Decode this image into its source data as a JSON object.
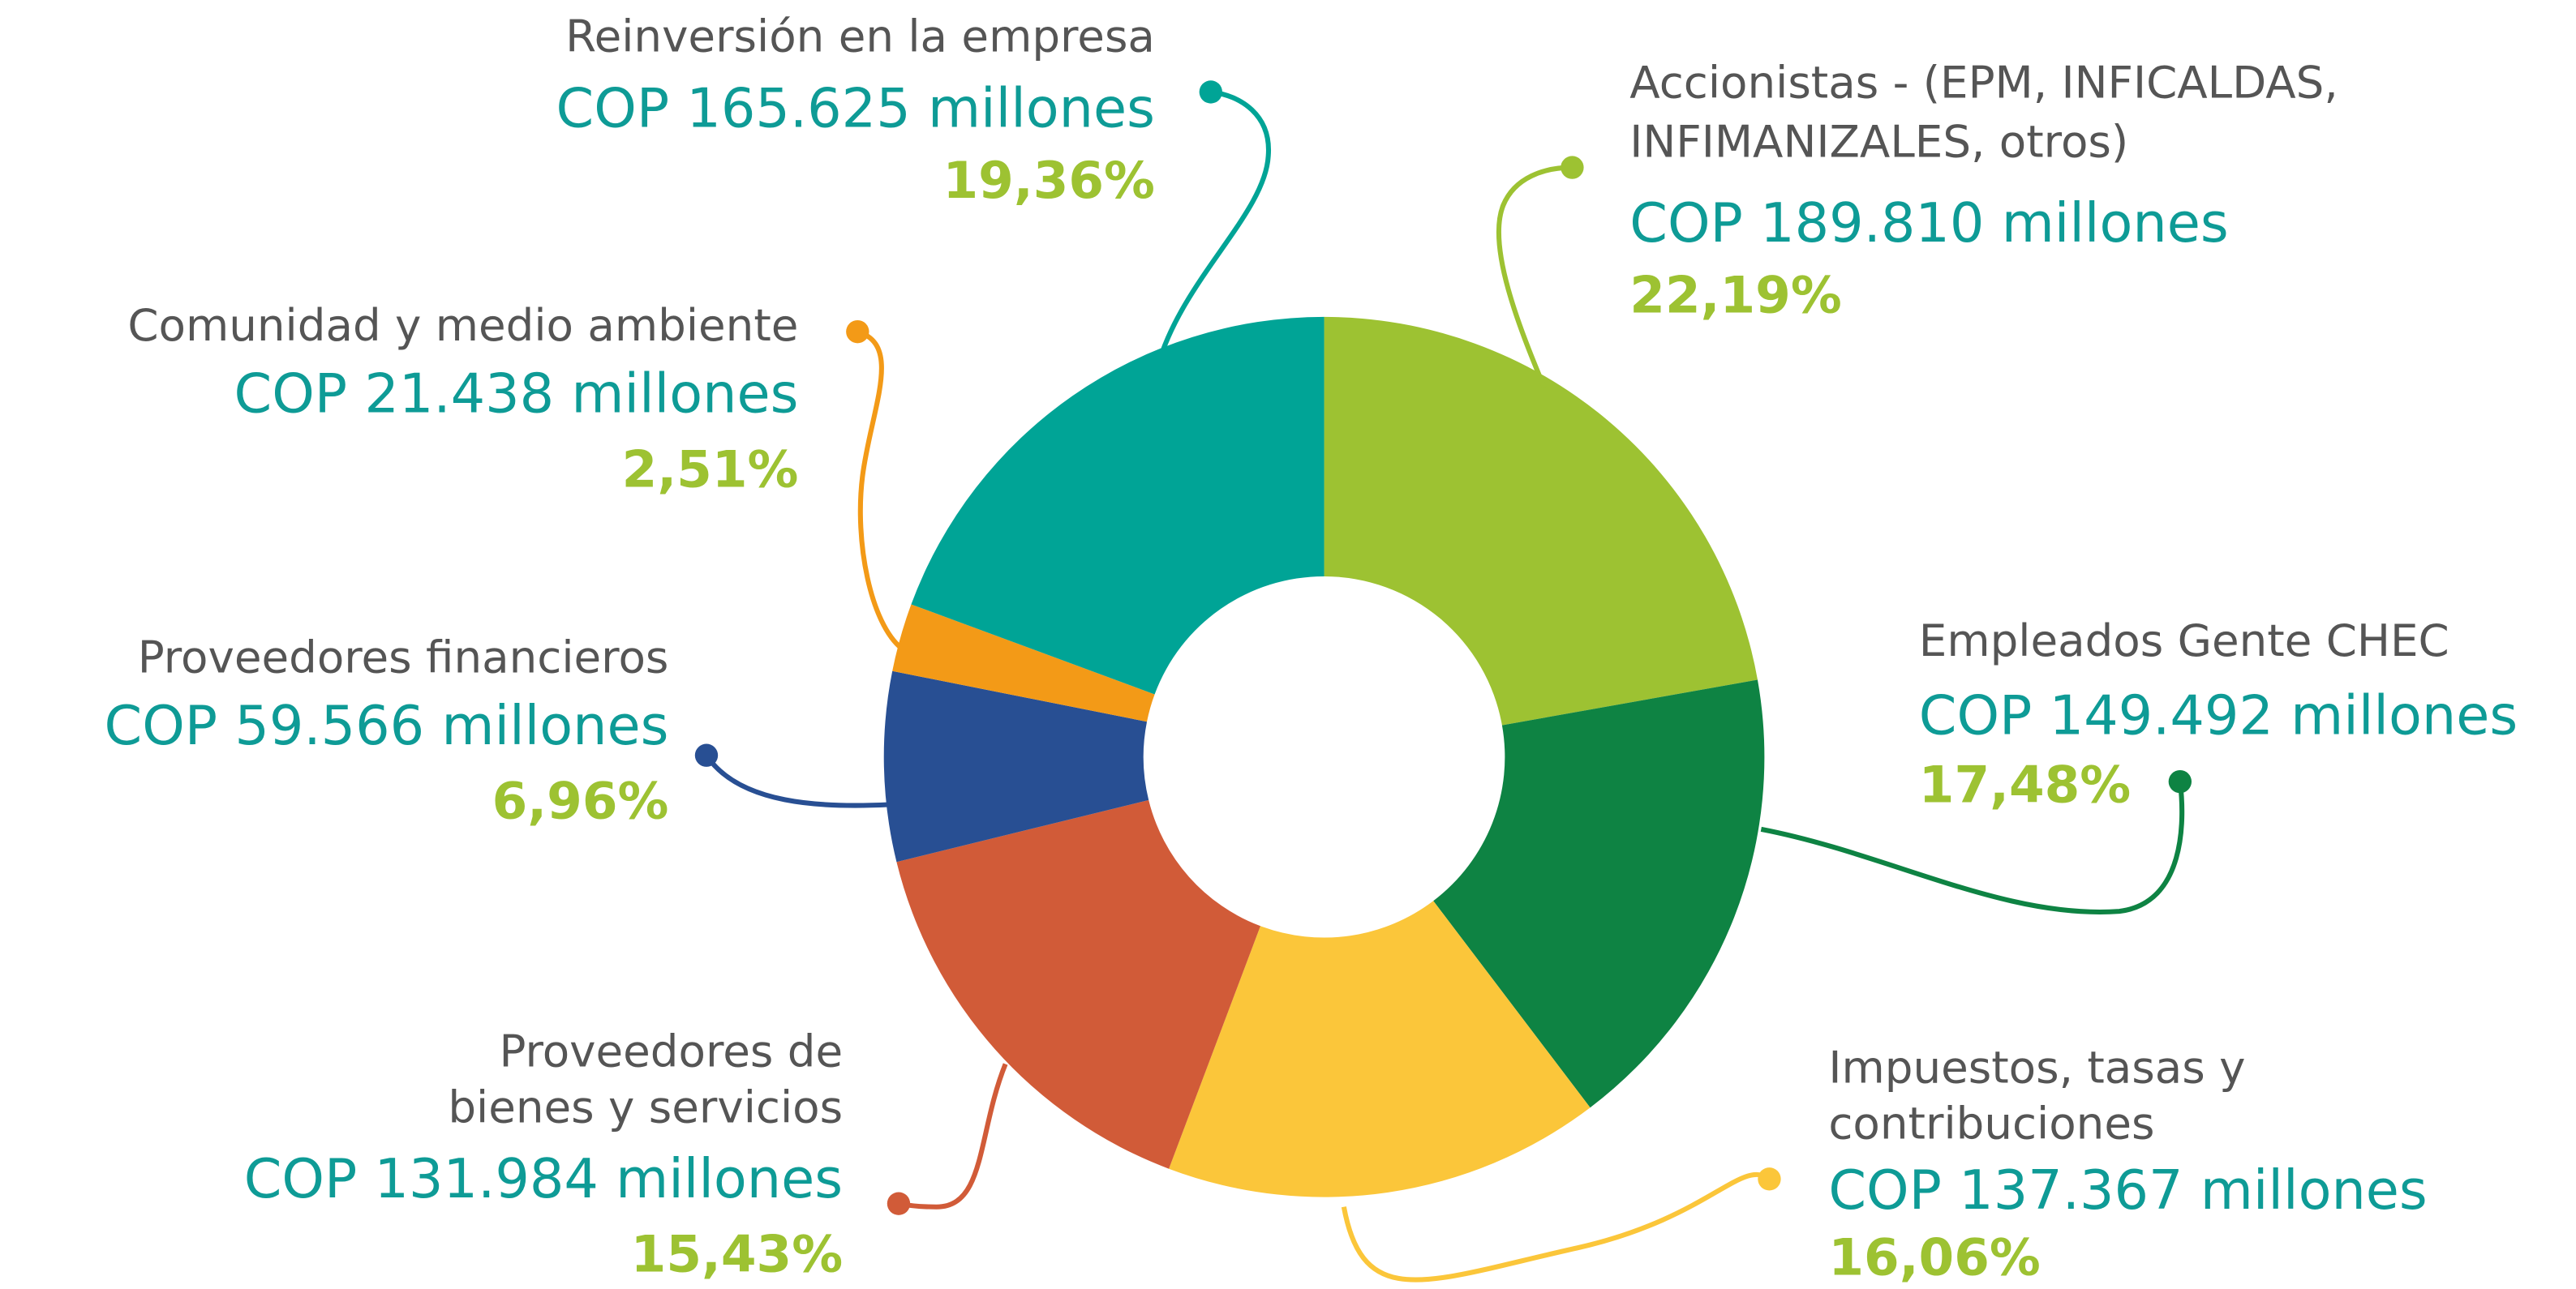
{
  "chart_data": {
    "type": "pie",
    "categories": [
      [
        "Accionistas - (EPM, INFICALDAS,",
        "INFIMANIZALES, otros)"
      ],
      [
        "Empleados Gente CHEC"
      ],
      [
        "Impuestos, tasas y",
        "contribuciones"
      ],
      [
        "Proveedores de",
        "bienes y servicios"
      ],
      [
        "Proveedores financieros"
      ],
      [
        "Comunidad y medio ambiente"
      ],
      [
        "Reinversión  en la empresa"
      ]
    ],
    "amount_labels": [
      "COP 189.810 millones",
      "COP 149.492 millones",
      "COP 137.367 millones",
      "COP 131.984 millones",
      "COP 59.566 millones",
      "COP 21.438 millones",
      "COP 165.625 millones"
    ],
    "values": [
      22.19,
      17.48,
      16.06,
      15.43,
      6.96,
      2.51,
      19.36
    ],
    "value_labels": [
      "22,19%",
      "17,48%",
      "16,06%",
      "15,43%",
      "6,96%",
      "2,51%",
      "19,36%"
    ],
    "colors": [
      "#9dc232",
      "#0e8343",
      "#fbc63a",
      "#d15b38",
      "#284f93",
      "#f39a17",
      "#00a496"
    ],
    "donut": true
  }
}
